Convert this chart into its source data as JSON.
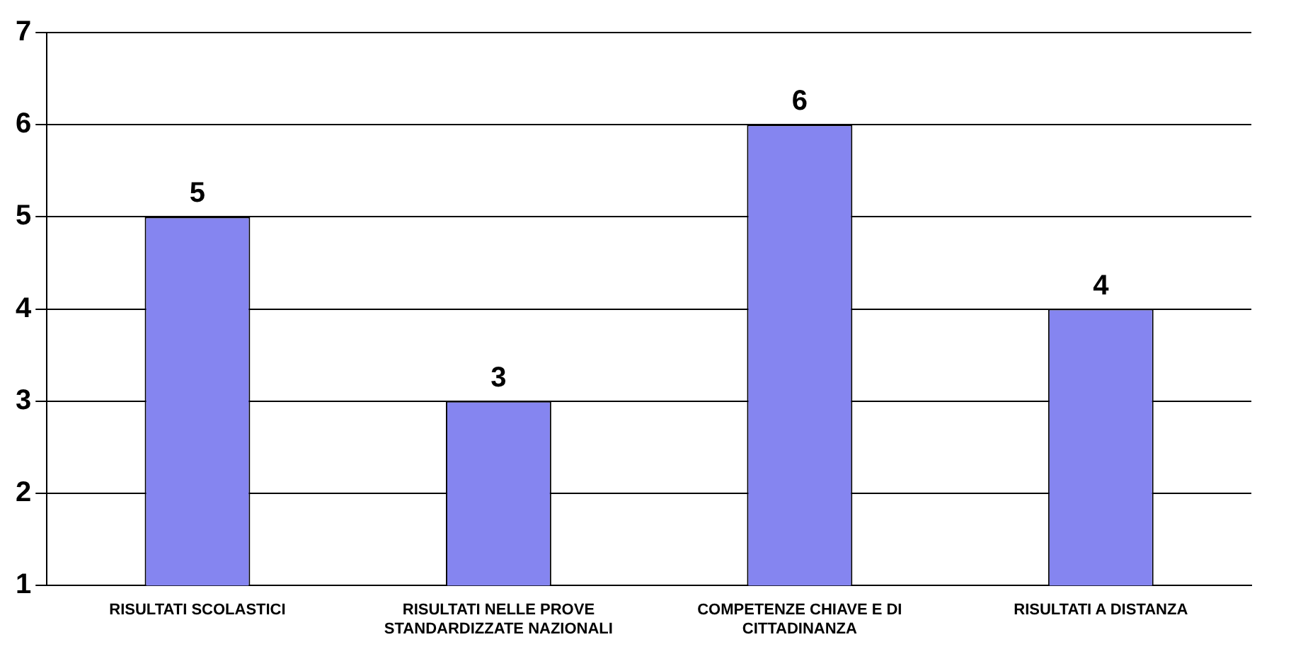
{
  "chart_data": {
    "type": "bar",
    "categories": [
      "RISULTATI SCOLASTICI",
      "RISULTATI NELLE PROVE STANDARDIZZATE NAZIONALI",
      "COMPETENZE CHIAVE E DI CITTADINANZA",
      "RISULTATI A DISTANZA"
    ],
    "values": [
      5,
      3,
      6,
      4
    ],
    "color": "#8585f0",
    "ylim": [
      1,
      7
    ],
    "yticks": [
      1,
      2,
      3,
      4,
      5,
      6,
      7
    ],
    "grid": "y",
    "data_labels": true
  }
}
